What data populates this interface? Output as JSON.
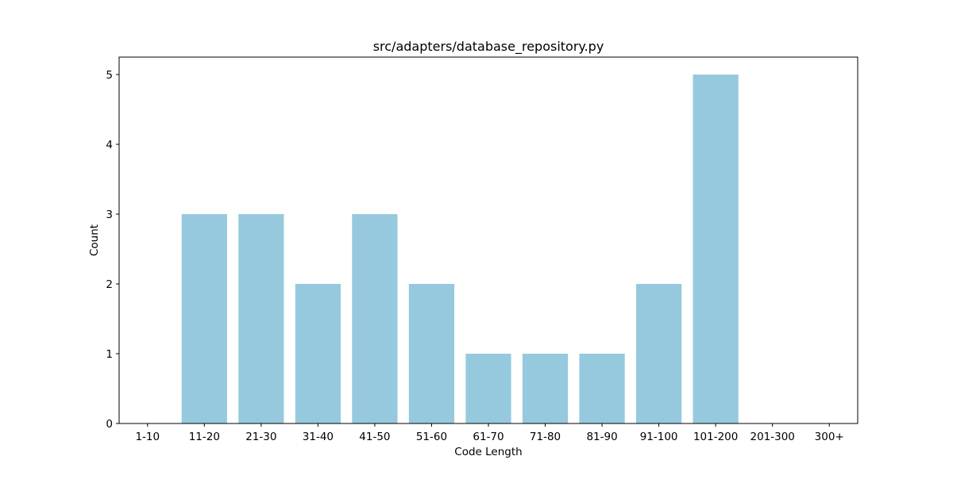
{
  "chart_data": {
    "type": "bar",
    "title": "src/adapters/database_repository.py",
    "xlabel": "Code Length",
    "ylabel": "Count",
    "categories": [
      "1-10",
      "11-20",
      "21-30",
      "31-40",
      "41-50",
      "51-60",
      "61-70",
      "71-80",
      "81-90",
      "91-100",
      "101-200",
      "201-300",
      "300+"
    ],
    "values": [
      0,
      3,
      3,
      2,
      3,
      2,
      1,
      1,
      1,
      2,
      5,
      0,
      0
    ],
    "ylim": [
      0,
      5.25
    ],
    "yticks": [
      0,
      1,
      2,
      3,
      4,
      5
    ],
    "grid": false,
    "bar_color": "#96c9dd"
  }
}
